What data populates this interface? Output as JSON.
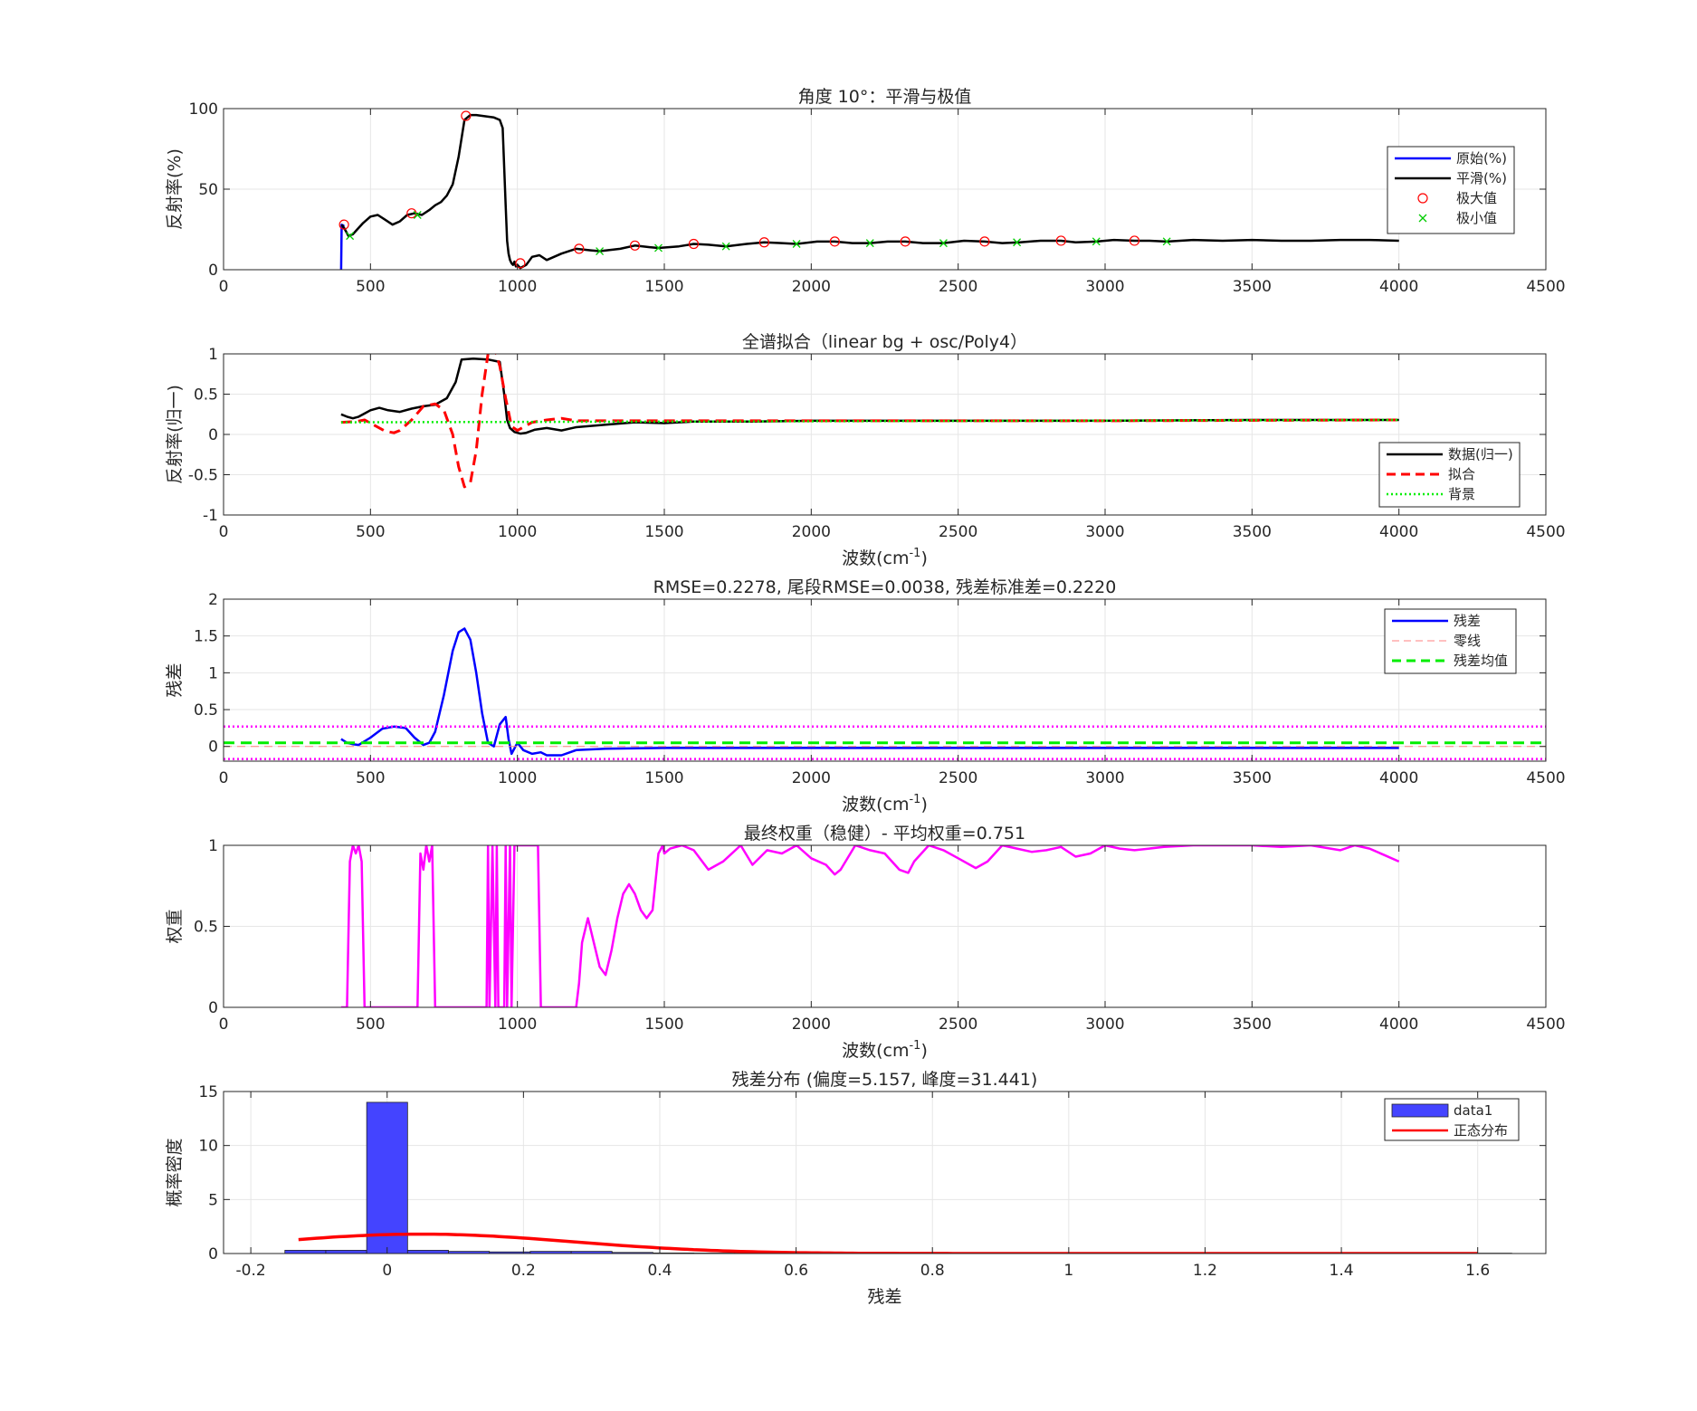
{
  "chart_data": [
    {
      "type": "line",
      "title": "角度 10°：平滑与极值",
      "xlabel": "",
      "ylabel": "反射率(%)",
      "xlim": [
        0,
        4500
      ],
      "ylim": [
        0,
        100
      ],
      "xticks": [
        0,
        500,
        1000,
        1500,
        2000,
        2500,
        3000,
        3500,
        4000,
        4500
      ],
      "yticks": [
        0,
        50,
        100
      ],
      "grid": true,
      "legend_position": "right",
      "series": [
        {
          "name": "原始(%)",
          "color": "#0000ff",
          "style": "solid",
          "x": [
            400,
            402,
            404,
            406,
            410
          ],
          "y": [
            0,
            28,
            26,
            27,
            28
          ]
        },
        {
          "name": "平滑(%)",
          "color": "#000000",
          "style": "solid",
          "x": [
            402,
            410,
            425,
            440,
            455,
            475,
            500,
            525,
            550,
            575,
            600,
            625,
            650,
            675,
            700,
            720,
            740,
            760,
            780,
            800,
            820,
            840,
            860,
            880,
            900,
            920,
            940,
            950,
            960,
            965,
            970,
            975,
            980,
            985,
            990,
            995,
            1000,
            1010,
            1020,
            1030,
            1050,
            1075,
            1100,
            1150,
            1200,
            1250,
            1280,
            1350,
            1400,
            1450,
            1480,
            1550,
            1600,
            1650,
            1710,
            1780,
            1840,
            1900,
            1950,
            2020,
            2080,
            2140,
            2200,
            2260,
            2320,
            2380,
            2450,
            2520,
            2590,
            2650,
            2710,
            2780,
            2850,
            2900,
            2970,
            3030,
            3100,
            3150,
            3210,
            3300,
            3400,
            3500,
            3600,
            3700,
            3800,
            3900,
            4000
          ],
          "y": [
            28,
            26,
            21,
            22,
            25,
            29,
            33,
            34,
            31,
            28,
            30,
            34,
            35,
            34,
            37,
            40,
            42,
            46,
            53,
            70,
            93,
            96,
            96,
            95.5,
            95,
            94.5,
            93,
            88,
            40,
            18,
            10,
            6,
            4,
            3,
            5,
            2,
            3,
            1,
            2,
            3,
            8,
            9,
            6,
            10,
            13,
            12,
            11.5,
            13,
            15,
            14,
            13.5,
            14.5,
            16,
            15.5,
            14.5,
            16,
            17,
            16.5,
            16,
            17.5,
            17.5,
            16.5,
            16.5,
            17.5,
            17.5,
            16.5,
            16.5,
            18,
            17.5,
            16.5,
            17,
            18,
            18,
            17,
            17.5,
            18.5,
            18,
            18,
            17.5,
            18.5,
            18,
            18.5,
            18,
            18,
            18.5,
            18.5,
            18
          ]
        },
        {
          "name": "极大值",
          "color": "#ff0000",
          "style": "circle-marker",
          "x": [
            410,
            640,
            825,
            1010,
            1210,
            1400,
            1600,
            1840,
            2080,
            2320,
            2590,
            2850,
            3100
          ],
          "y": [
            28,
            35,
            95.5,
            4,
            13,
            15,
            16,
            17,
            17.5,
            17.5,
            17.5,
            18,
            18
          ]
        },
        {
          "name": "极小值",
          "color": "#00cc00",
          "style": "x-marker",
          "x": [
            430,
            660,
            1280,
            1480,
            1710,
            1950,
            2200,
            2450,
            2700,
            2970,
            3210
          ],
          "y": [
            21,
            34,
            11.5,
            13.5,
            14.5,
            16,
            16.5,
            16.5,
            17,
            17.5,
            17.5
          ]
        }
      ]
    },
    {
      "type": "line",
      "title": "全谱拟合（linear bg + osc/Poly4）",
      "xlabel": "波数(cm-1)",
      "ylabel": "反射率(归一)",
      "xlim": [
        0,
        4500
      ],
      "ylim": [
        -1,
        1
      ],
      "xticks": [
        0,
        500,
        1000,
        1500,
        2000,
        2500,
        3000,
        3500,
        4000,
        4500
      ],
      "yticks": [
        -1,
        -0.5,
        0,
        0.5,
        1
      ],
      "grid": true,
      "legend_position": "bottom-right",
      "series": [
        {
          "name": "数据(归一)",
          "color": "#000000",
          "style": "solid",
          "x": [
            400,
            420,
            440,
            460,
            480,
            500,
            530,
            560,
            600,
            640,
            680,
            720,
            760,
            790,
            810,
            850,
            900,
            940,
            955,
            965,
            975,
            990,
            1010,
            1030,
            1060,
            1100,
            1150,
            1200,
            1300,
            1400,
            1500,
            1600,
            1800,
            2000,
            2500,
            3000,
            3500,
            4000
          ],
          "y": [
            0.25,
            0.22,
            0.2,
            0.22,
            0.26,
            0.3,
            0.33,
            0.3,
            0.28,
            0.32,
            0.35,
            0.37,
            0.45,
            0.65,
            0.93,
            0.94,
            0.93,
            0.9,
            0.5,
            0.18,
            0.08,
            0.03,
            0.01,
            0.02,
            0.06,
            0.08,
            0.05,
            0.09,
            0.12,
            0.15,
            0.14,
            0.16,
            0.16,
            0.17,
            0.17,
            0.17,
            0.18,
            0.18
          ]
        },
        {
          "name": "拟合",
          "color": "#ff0000",
          "style": "dashed",
          "x": [
            400,
            450,
            480,
            510,
            550,
            580,
            600,
            640,
            680,
            720,
            750,
            780,
            800,
            820,
            840,
            860,
            880,
            900,
            920,
            940,
            960,
            980,
            1000,
            1050,
            1100,
            1150,
            1200,
            1300,
            1500,
            2000,
            3000,
            4000
          ],
          "y": [
            0.15,
            0.16,
            0.18,
            0.12,
            0.04,
            0.02,
            0.05,
            0.18,
            0.35,
            0.38,
            0.3,
            0.0,
            -0.4,
            -0.65,
            -0.6,
            -0.2,
            0.5,
            1.0,
            1.1,
            0.85,
            0.45,
            0.1,
            0.05,
            0.15,
            0.18,
            0.2,
            0.17,
            0.17,
            0.17,
            0.17,
            0.17,
            0.18
          ]
        },
        {
          "name": "背景",
          "color": "#00ee00",
          "style": "dotted",
          "x": [
            400,
            4000
          ],
          "y": [
            0.15,
            0.18
          ]
        }
      ]
    },
    {
      "type": "line",
      "title": "RMSE=0.2278, 尾段RMSE=0.0038, 残差标准差=0.2220",
      "xlabel": "波数(cm-1)",
      "ylabel": "残差",
      "xlim": [
        0,
        4500
      ],
      "ylim": [
        -0.2,
        2
      ],
      "xticks": [
        0,
        500,
        1000,
        1500,
        2000,
        2500,
        3000,
        3500,
        4000,
        4500
      ],
      "yticks": [
        0,
        0.5,
        1,
        1.5,
        2
      ],
      "grid": true,
      "legend_position": "top-right",
      "series": [
        {
          "name": "残差",
          "color": "#0000ff",
          "style": "solid",
          "x": [
            400,
            420,
            440,
            460,
            500,
            540,
            580,
            620,
            650,
            680,
            700,
            720,
            750,
            780,
            800,
            820,
            840,
            860,
            880,
            900,
            920,
            940,
            960,
            970,
            980,
            1000,
            1020,
            1050,
            1080,
            1100,
            1150,
            1200,
            1300,
            1500,
            2000,
            2500,
            3000,
            3500,
            4000
          ],
          "y": [
            0.1,
            0.05,
            0.03,
            0.02,
            0.12,
            0.24,
            0.27,
            0.25,
            0.12,
            0.02,
            0.05,
            0.2,
            0.7,
            1.3,
            1.55,
            1.6,
            1.45,
            1.0,
            0.45,
            0.05,
            0.0,
            0.3,
            0.4,
            0.1,
            -0.1,
            0.05,
            -0.05,
            -0.1,
            -0.08,
            -0.12,
            -0.12,
            -0.05,
            -0.03,
            -0.02,
            -0.02,
            -0.02,
            -0.02,
            -0.02,
            -0.02
          ]
        },
        {
          "name": "零线",
          "color": "#ff0000",
          "style": "dashed-thin",
          "x": [
            0,
            4500
          ],
          "y": [
            0,
            0
          ]
        },
        {
          "name": "残差均值",
          "color": "#00ee00",
          "style": "dashed",
          "x": [
            0,
            4500
          ],
          "y": [
            0.05,
            0.05
          ]
        },
        {
          "name": "",
          "color": "#ff00ff",
          "style": "dotted",
          "x": [
            0,
            4500
          ],
          "y": [
            0.27,
            0.27
          ]
        },
        {
          "name": "",
          "color": "#ff00ff",
          "style": "dotted",
          "x": [
            0,
            4500
          ],
          "y": [
            -0.17,
            -0.17
          ]
        }
      ]
    },
    {
      "type": "line",
      "title": "最终权重（稳健）- 平均权重=0.751",
      "xlabel": "波数(cm-1)",
      "ylabel": "权重",
      "xlim": [
        0,
        4500
      ],
      "ylim": [
        0,
        1
      ],
      "xticks": [
        0,
        500,
        1000,
        1500,
        2000,
        2500,
        3000,
        3500,
        4000,
        4500
      ],
      "yticks": [
        0,
        0.5,
        1
      ],
      "grid": true,
      "series": [
        {
          "name": "",
          "color": "#ff00ff",
          "style": "solid",
          "x": [
            400,
            420,
            430,
            440,
            450,
            460,
            470,
            480,
            490,
            660,
            670,
            680,
            690,
            700,
            710,
            720,
            730,
            895,
            900,
            905,
            915,
            925,
            930,
            935,
            940,
            955,
            960,
            965,
            975,
            980,
            990,
            1000,
            1010,
            1020,
            1050,
            1070,
            1080,
            1090,
            1200,
            1210,
            1220,
            1240,
            1260,
            1280,
            1300,
            1320,
            1340,
            1360,
            1380,
            1400,
            1420,
            1440,
            1460,
            1480,
            1495,
            1500,
            1520,
            1560,
            1600,
            1650,
            1700,
            1760,
            1800,
            1850,
            1900,
            1950,
            2000,
            2050,
            2080,
            2100,
            2150,
            2200,
            2250,
            2300,
            2330,
            2350,
            2400,
            2450,
            2500,
            2560,
            2600,
            2650,
            2700,
            2750,
            2800,
            2850,
            2900,
            2950,
            3000,
            3050,
            3100,
            3200,
            3300,
            3400,
            3500,
            3600,
            3700,
            3800,
            3850,
            3900,
            3950,
            4000
          ],
          "y": [
            0,
            0,
            0.9,
            1,
            0.95,
            1,
            0.9,
            0,
            0,
            0,
            0.95,
            0.85,
            1,
            0.9,
            1,
            0,
            0,
            0,
            1,
            0,
            1,
            0,
            1,
            0,
            0,
            0,
            1,
            0,
            1,
            0,
            1,
            1,
            1,
            1,
            1,
            1,
            0,
            0,
            0,
            0.15,
            0.4,
            0.55,
            0.4,
            0.25,
            0.2,
            0.35,
            0.55,
            0.7,
            0.76,
            0.7,
            0.6,
            0.55,
            0.6,
            0.95,
            1,
            0.95,
            0.98,
            1,
            0.97,
            0.85,
            0.9,
            1,
            0.88,
            0.97,
            0.95,
            1,
            0.92,
            0.88,
            0.82,
            0.85,
            1,
            0.97,
            0.95,
            0.85,
            0.83,
            0.9,
            1,
            0.97,
            0.92,
            0.86,
            0.9,
            1,
            0.98,
            0.96,
            0.97,
            0.99,
            0.93,
            0.95,
            1,
            0.98,
            0.97,
            0.99,
            1,
            1,
            1,
            0.99,
            1,
            0.97,
            1,
            0.98,
            0.94,
            0.9
          ]
        }
      ]
    },
    {
      "type": "bar",
      "title": "残差分布 (偏度=5.157, 峰度=31.441)",
      "xlabel": "残差",
      "ylabel": "概率密度",
      "xlim": [
        -0.24,
        1.7
      ],
      "ylim": [
        0,
        15
      ],
      "xticks": [
        -0.2,
        0,
        0.2,
        0.4,
        0.6,
        0.8,
        1,
        1.2,
        1.4,
        1.6
      ],
      "xtick_labels": [
        "-0.2",
        "0",
        "0.2",
        "0.4",
        "0.6",
        "0.8",
        "1",
        "1.2",
        "1.4",
        "1.6"
      ],
      "yticks": [
        0,
        5,
        10,
        15
      ],
      "grid": true,
      "legend_position": "top-right",
      "series": [
        {
          "name": "data1",
          "color": "#0000ff",
          "style": "bar",
          "bin_edges": [
            -0.15,
            -0.09,
            -0.03,
            0.03,
            0.09,
            0.15,
            0.21,
            0.27,
            0.33,
            0.39,
            0.45,
            0.51,
            0.57,
            0.63,
            0.69,
            0.75,
            0.81,
            0.87,
            0.93,
            0.99,
            1.05,
            1.11,
            1.17,
            1.23,
            1.29,
            1.35,
            1.41,
            1.47,
            1.53,
            1.59,
            1.65
          ],
          "values": [
            0.3,
            0.3,
            14,
            0.3,
            0.2,
            0.15,
            0.2,
            0.2,
            0.1,
            0.05,
            0.04,
            0.04,
            0.05,
            0.05,
            0.04,
            0.03,
            0.04,
            0.03,
            0.03,
            0.03,
            0.03,
            0.03,
            0.03,
            0.03,
            0.03,
            0.03,
            0.03,
            0.03,
            0.03,
            0.03
          ]
        },
        {
          "name": "正态分布",
          "color": "#ff0000",
          "style": "solid",
          "mean": 0.05,
          "std": 0.222,
          "x_range": [
            -0.13,
            1.6
          ]
        }
      ]
    }
  ]
}
